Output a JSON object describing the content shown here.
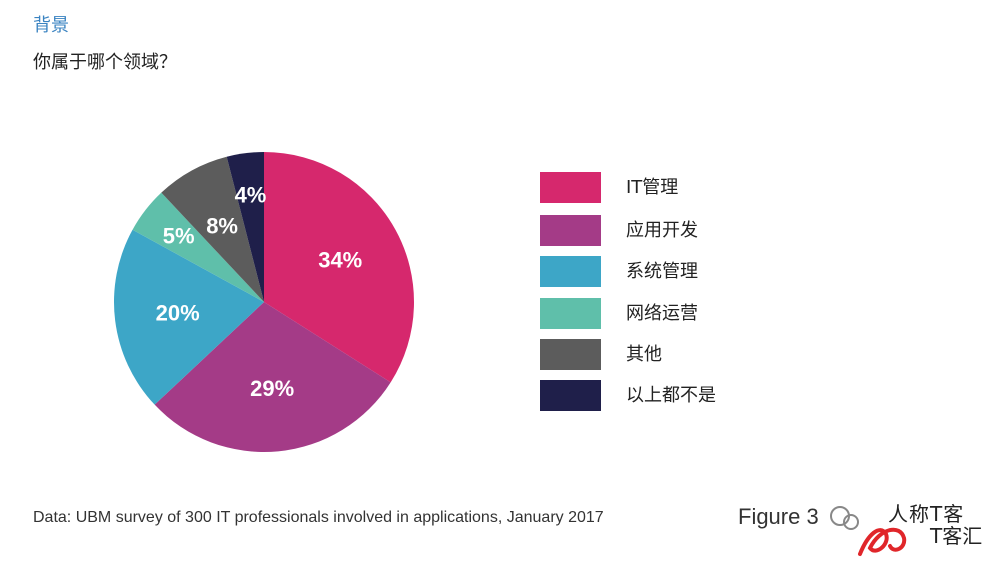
{
  "header": {
    "section_label": "背景",
    "question": "你属于哪个领域？"
  },
  "chart_data": {
    "type": "pie",
    "categories": [
      "IT管理",
      "应用开发",
      "系统管理",
      "网络运营",
      "其他",
      "以上都不是"
    ],
    "values": [
      34,
      29,
      20,
      5,
      8,
      4
    ],
    "value_labels": [
      "34%",
      "29%",
      "20%",
      "5%",
      "8%",
      "4%"
    ],
    "colors": [
      "#d6286d",
      "#a43b87",
      "#3da6c7",
      "#5fbfaa",
      "#5c5c5c",
      "#1f1f4a"
    ],
    "start": "12 o'clock",
    "direction": "clockwise",
    "legend_position": "right"
  },
  "footer": {
    "source": "Data: UBM survey of 300 IT professionals involved in applications, January 2017",
    "figure_label": "Figure 3"
  },
  "watermark": {
    "text_line1": "人称T客",
    "text_line2": "T客汇"
  }
}
